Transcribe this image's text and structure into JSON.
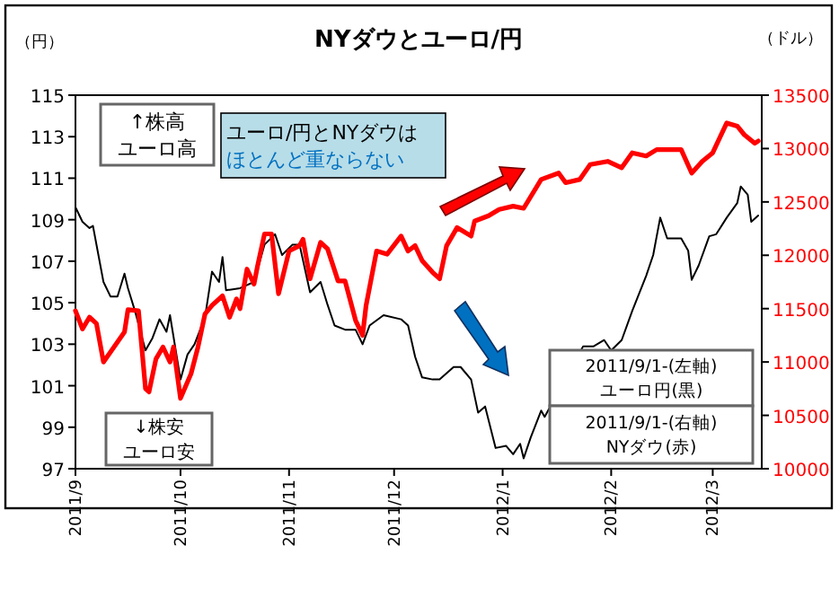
{
  "chart_data": {
    "type": "line",
    "title": "NYダウとユーロ/円",
    "ylabel": "（円）",
    "y2label": "（ドル）",
    "xlim": [
      "2011-09-01",
      "2012-03-15"
    ],
    "xticks": [
      {
        "value": "2011-09-01",
        "label": "2011/9"
      },
      {
        "value": "2011-10-01",
        "label": "2011/10"
      },
      {
        "value": "2011-11-01",
        "label": "2011/11"
      },
      {
        "value": "2011-12-01",
        "label": "2011/12"
      },
      {
        "value": "2012-01-01",
        "label": "2012/1"
      },
      {
        "value": "2012-02-01",
        "label": "2012/2"
      },
      {
        "value": "2012-03-01",
        "label": "2012/3"
      }
    ],
    "ylim": [
      97,
      115
    ],
    "yticks": [
      97,
      99,
      101,
      103,
      105,
      107,
      109,
      111,
      113,
      115
    ],
    "y2lim": [
      10000,
      13500
    ],
    "y2ticks": [
      10000,
      10500,
      11000,
      11500,
      12000,
      12500,
      13000,
      13500
    ],
    "grid": false,
    "marker": "none",
    "line_style": "solid",
    "series": [
      {
        "color": "#000000",
        "x": [
          "2011-09-01",
          "2011-09-03",
          "2011-09-05",
          "2011-09-06",
          "2011-09-09",
          "2011-09-11",
          "2011-09-13",
          "2011-09-15",
          "2011-09-16",
          "2011-09-18",
          "2011-09-21",
          "2011-09-23",
          "2011-09-25",
          "2011-09-27",
          "2011-09-28",
          "2011-10-01",
          "2011-10-03",
          "2011-10-05",
          "2011-10-08",
          "2011-10-10",
          "2011-10-12",
          "2011-10-13",
          "2011-10-14",
          "2011-10-18",
          "2011-10-22",
          "2011-10-25",
          "2011-10-28",
          "2011-10-30",
          "2011-11-02",
          "2011-11-04",
          "2011-11-07",
          "2011-11-10",
          "2011-11-12",
          "2011-11-14",
          "2011-11-17",
          "2011-11-20",
          "2011-11-22",
          "2011-11-24",
          "2011-11-28",
          "2011-12-03",
          "2011-12-05",
          "2011-12-07",
          "2011-12-09",
          "2011-12-12",
          "2011-12-14",
          "2011-12-18",
          "2011-12-20",
          "2011-12-23",
          "2011-12-25",
          "2011-12-27",
          "2011-12-30",
          "2012-01-02",
          "2012-01-04",
          "2012-01-06",
          "2012-01-07",
          "2012-01-09",
          "2012-01-12",
          "2012-01-13",
          "2012-01-24",
          "2012-01-27",
          "2012-01-30",
          "2012-02-01",
          "2012-02-04",
          "2012-02-07",
          "2012-02-11",
          "2012-02-13",
          "2012-02-15",
          "2012-02-17",
          "2012-02-21",
          "2012-02-23",
          "2012-02-24",
          "2012-02-26",
          "2012-02-29",
          "2012-03-02",
          "2012-03-05",
          "2012-03-08",
          "2012-03-09",
          "2012-03-11",
          "2012-03-12",
          "2012-03-14"
        ],
        "values": [
          109.6,
          108.9,
          108.6,
          108.7,
          106.0,
          105.3,
          105.3,
          106.4,
          105.7,
          104.6,
          102.7,
          103.3,
          104.2,
          103.6,
          104.4,
          101.3,
          102.5,
          103.0,
          104.3,
          106.5,
          106.0,
          107.2,
          105.6,
          105.7,
          106.0,
          107.8,
          108.3,
          107.3,
          107.8,
          107.8,
          105.5,
          106.0,
          104.9,
          103.9,
          103.7,
          103.7,
          103.0,
          103.9,
          104.4,
          104.2,
          103.9,
          102.4,
          101.4,
          101.3,
          101.3,
          101.9,
          101.9,
          101.3,
          99.7,
          100.0,
          98.0,
          98.1,
          97.7,
          98.2,
          97.5,
          98.5,
          99.8,
          99.5,
          102.9,
          102.9,
          103.2,
          102.7,
          103.2,
          104.6,
          106.3,
          107.3,
          109.1,
          108.1,
          108.1,
          107.5,
          106.1,
          106.8,
          108.2,
          108.3,
          109.1,
          109.8,
          110.6,
          110.2,
          108.9,
          109.2
        ]
      },
      {
        "color": "#ff0000",
        "axis": "y2",
        "x": [
          "2011-09-01",
          "2011-09-03",
          "2011-09-05",
          "2011-09-07",
          "2011-09-09",
          "2011-09-12",
          "2011-09-15",
          "2011-09-16",
          "2011-09-19",
          "2011-09-21",
          "2011-09-22",
          "2011-09-24",
          "2011-09-26",
          "2011-09-28",
          "2011-09-29",
          "2011-10-01",
          "2011-10-04",
          "2011-10-06",
          "2011-10-08",
          "2011-10-10",
          "2011-10-13",
          "2011-10-15",
          "2011-10-17",
          "2011-10-18",
          "2011-10-20",
          "2011-10-22",
          "2011-10-23",
          "2011-10-25",
          "2011-10-27",
          "2011-10-29",
          "2011-11-01",
          "2011-11-04",
          "2011-11-05",
          "2011-11-07",
          "2011-11-10",
          "2011-11-12",
          "2011-11-15",
          "2011-11-17",
          "2011-11-20",
          "2011-11-22",
          "2011-11-23",
          "2011-11-26",
          "2011-11-29",
          "2011-12-03",
          "2011-12-05",
          "2011-12-07",
          "2011-12-09",
          "2011-12-12",
          "2011-12-14",
          "2011-12-16",
          "2011-12-19",
          "2011-12-23",
          "2011-12-24",
          "2011-12-28",
          "2011-12-31",
          "2012-01-04",
          "2012-01-07",
          "2012-01-12",
          "2012-01-17",
          "2012-01-19",
          "2012-01-23",
          "2012-01-26",
          "2012-01-31",
          "2012-02-04",
          "2012-02-07",
          "2012-02-11",
          "2012-02-14",
          "2012-02-21",
          "2012-02-24",
          "2012-02-27",
          "2012-03-01",
          "2012-03-05",
          "2012-03-08",
          "2012-03-10",
          "2012-03-13",
          "2012-03-14"
        ],
        "values": [
          11480,
          11310,
          11420,
          11360,
          11000,
          11140,
          11280,
          11490,
          11480,
          10750,
          10720,
          11030,
          11140,
          11000,
          11140,
          10660,
          10890,
          11140,
          11450,
          11530,
          11620,
          11420,
          11590,
          11500,
          11870,
          11730,
          11900,
          12200,
          12200,
          11640,
          12040,
          12090,
          12150,
          11780,
          12120,
          12060,
          11760,
          11760,
          11390,
          11250,
          11530,
          12040,
          12010,
          12180,
          12040,
          12090,
          11950,
          11840,
          11780,
          12090,
          12260,
          12180,
          12320,
          12370,
          12430,
          12460,
          12440,
          12710,
          12770,
          12680,
          12710,
          12850,
          12880,
          12820,
          12960,
          12930,
          12990,
          12990,
          12770,
          12880,
          12960,
          13240,
          13210,
          13130,
          13050,
          13070
        ]
      }
    ],
    "annotations": [
      "↑株高",
      "ユーロ高",
      "ユーロ/円とNYダウは",
      "ほとんど重ならない",
      "↓株安",
      "ユーロ安",
      "2011/9/1-(左軸)",
      "ユーロ円(黒)",
      "2011/9/1-(右軸)",
      "NYダウ(赤)"
    ]
  }
}
